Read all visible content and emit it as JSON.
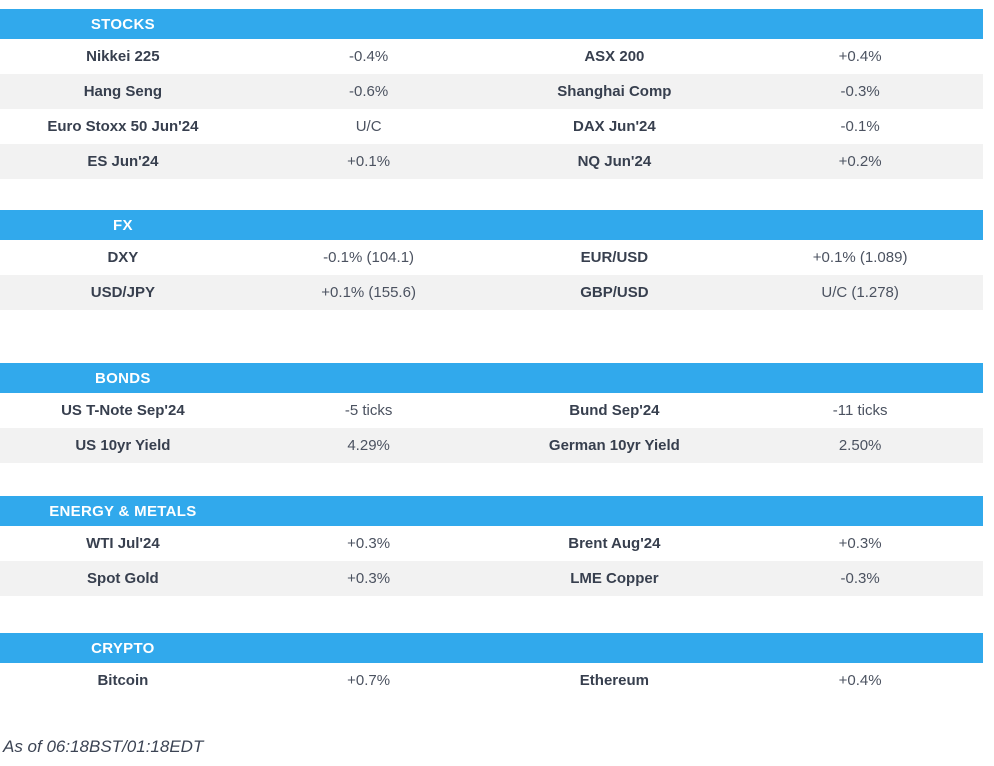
{
  "colors": {
    "accent": "#31A9EC",
    "row_alt": "#F2F2F2",
    "name_text": "#373F4E",
    "value_text": "#4B5260",
    "footer_text": "#3C4454"
  },
  "sections": [
    {
      "title": "STOCKS",
      "rows": [
        {
          "name1": "Nikkei 225",
          "value1": "-0.4%",
          "name2": "ASX 200",
          "value2": "+0.4%"
        },
        {
          "name1": "Hang Seng",
          "value1": "-0.6%",
          "name2": "Shanghai Comp",
          "value2": "-0.3%"
        },
        {
          "name1": "Euro Stoxx 50 Jun'24",
          "value1": "U/C",
          "name2": "DAX Jun'24",
          "value2": "-0.1%"
        },
        {
          "name1": "ES Jun'24",
          "value1": "+0.1%",
          "name2": "NQ Jun'24",
          "value2": "+0.2%"
        }
      ]
    },
    {
      "title": "FX",
      "rows": [
        {
          "name1": "DXY",
          "value1": "-0.1% (104.1)",
          "name2": "EUR/USD",
          "value2": "+0.1% (1.089)"
        },
        {
          "name1": "USD/JPY",
          "value1": "+0.1% (155.6)",
          "name2": "GBP/USD",
          "value2": "U/C (1.278)"
        }
      ]
    },
    {
      "title": "BONDS",
      "rows": [
        {
          "name1": "US T-Note Sep'24",
          "value1": "-5 ticks",
          "name2": "Bund Sep'24",
          "value2": "-11 ticks"
        },
        {
          "name1": "US 10yr Yield",
          "value1": "4.29%",
          "name2": "German 10yr Yield",
          "value2": "2.50%"
        }
      ]
    },
    {
      "title": "ENERGY & METALS",
      "rows": [
        {
          "name1": "WTI Jul'24",
          "value1": "+0.3%",
          "name2": "Brent Aug'24",
          "value2": "+0.3%"
        },
        {
          "name1": "Spot Gold",
          "value1": "+0.3%",
          "name2": "LME Copper",
          "value2": "-0.3%"
        }
      ]
    },
    {
      "title": "CRYPTO",
      "rows": [
        {
          "name1": "Bitcoin",
          "value1": "+0.7%",
          "name2": "Ethereum",
          "value2": "+0.4%"
        }
      ]
    }
  ],
  "footer": {
    "as_of": "As of 06:18BST/01:18EDT"
  }
}
